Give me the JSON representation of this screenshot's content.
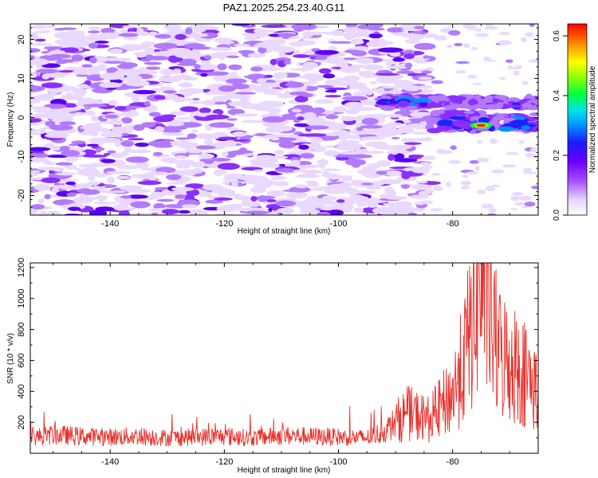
{
  "title": "PAZ1.2025.254.23.40.G11",
  "colorbar": {
    "label": "Normalized spectral amplitude",
    "ticks": [
      "0.0",
      "0.2",
      "0.4",
      "0.6"
    ],
    "tick_values": [
      0.0,
      0.2,
      0.4,
      0.6
    ],
    "range": [
      0,
      0.64
    ]
  },
  "chart_data": [
    {
      "type": "heatmap",
      "title": "PAZ1.2025.254.23.40.G11",
      "xlabel": "Height of straight line (km)",
      "ylabel": "Frequency (Hz)",
      "xlim": [
        -154,
        -65
      ],
      "ylim": [
        -25,
        24
      ],
      "x_ticks": [
        -140,
        -120,
        -100,
        -80
      ],
      "x_tick_labels": [
        "-140",
        "-120",
        "-100",
        "-80"
      ],
      "y_ticks": [
        -20,
        -10,
        0,
        10,
        20
      ],
      "y_tick_labels": [
        "-20",
        "-10",
        "0",
        "10",
        "20"
      ],
      "colorscale": "rainbow (purple→blue→cyan→green→yellow→red)",
      "features": [
        {
          "x_range": [
            -154,
            -85
          ],
          "freq_range": [
            -25,
            24
          ],
          "amplitude": "0.05-0.12 scattered noise"
        },
        {
          "x_range": [
            -93,
            -84
          ],
          "freq_center": 4,
          "amplitude": 0.25
        },
        {
          "x_range": [
            -84,
            -65
          ],
          "freq_center": 4,
          "amplitude": 0.18
        },
        {
          "x_range": [
            -84,
            -65
          ],
          "freq_center": -1,
          "amplitude": 0.22
        },
        {
          "x": -75,
          "freq": -2,
          "amplitude": 0.64
        }
      ]
    },
    {
      "type": "line",
      "xlabel": "Height of straight line (km)",
      "ylabel": "SNR (10 * v/v)",
      "xlim": [
        -154,
        -65
      ],
      "ylim": [
        0,
        1230
      ],
      "x_ticks": [
        -140,
        -120,
        -100,
        -80
      ],
      "x_tick_labels": [
        "-140",
        "-120",
        "-100",
        "-80"
      ],
      "y_ticks": [
        200,
        400,
        600,
        800,
        1000,
        1200
      ],
      "y_tick_labels": [
        "200",
        "400",
        "600",
        "800",
        "1000",
        "1200"
      ],
      "color": "#e8302a",
      "series": [
        {
          "name": "SNR",
          "x": [
            -154,
            -150,
            -145,
            -140,
            -135,
            -130,
            -125,
            -120,
            -115,
            -110,
            -105,
            -100,
            -95,
            -92,
            -90,
            -88,
            -86,
            -84,
            -82,
            -80,
            -78,
            -76,
            -75,
            -74,
            -73,
            -72,
            -70,
            -68,
            -66,
            -65
          ],
          "y": [
            100,
            120,
            110,
            105,
            110,
            100,
            105,
            110,
            100,
            115,
            110,
            105,
            100,
            140,
            200,
            260,
            240,
            220,
            300,
            380,
            600,
            950,
            1150,
            1100,
            800,
            650,
            600,
            550,
            450,
            400
          ]
        }
      ]
    }
  ]
}
